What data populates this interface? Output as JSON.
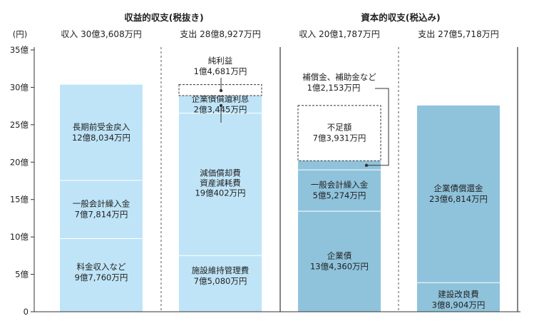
{
  "chart_data": {
    "type": "bar",
    "unit_label": "(円)",
    "ylim": [
      0,
      3500000000
    ],
    "yticks": [
      {
        "value": 0,
        "label": "0"
      },
      {
        "value": 500000000,
        "label": "5億"
      },
      {
        "value": 1000000000,
        "label": "10億"
      },
      {
        "value": 1500000000,
        "label": "15億"
      },
      {
        "value": 2000000000,
        "label": "20億"
      },
      {
        "value": 2500000000,
        "label": "25億"
      },
      {
        "value": 3000000000,
        "label": "30億"
      },
      {
        "value": 3500000000,
        "label": "35億"
      }
    ],
    "groups": [
      {
        "title": "収益的収支(税抜き)"
      },
      {
        "title": "資本的収支(税込み)"
      }
    ],
    "columns": [
      {
        "header": "収入 30億3,608万円",
        "total": 3036080000,
        "segments": [
          {
            "label1": "料金収入など",
            "label2": "9億7,760万円",
            "value": 977600000,
            "color": "#bfe4f7"
          },
          {
            "label1": "一般会計繰入金",
            "label2": "7億7,814万円",
            "value": 778140000,
            "color": "#bfe4f7"
          },
          {
            "label1": "長期前受金戻入",
            "label2": "12億8,034万円",
            "value": 1280340000,
            "color": "#bfe4f7"
          }
        ]
      },
      {
        "header": "支出 28億8,927万円",
        "total": 2889270000,
        "segments": [
          {
            "label1": "施設維持管理費",
            "label2": "7億5,080万円",
            "value": 750800000,
            "color": "#bfe4f7"
          },
          {
            "label1": "減価償却費",
            "label1b": "資産減耗費",
            "label2": "19億402万円",
            "value": 1904020000,
            "color": "#bfe4f7"
          },
          {
            "label1": "企業債償還利息",
            "label2": "2億3,445万円",
            "value": 234450000,
            "color": "#bfe4f7"
          }
        ],
        "dashed_box": {
          "label1": "純利益",
          "label2": "1億4,681万円",
          "value": 146810000
        }
      },
      {
        "header": "収入 20億1,787万円",
        "total": 2017870000,
        "segments": [
          {
            "label1": "企業債",
            "label2": "13億4,360万円",
            "value": 1343600000,
            "color": "#8fc3dc"
          },
          {
            "label1": "一般会計繰入金",
            "label2": "5億5,274万円",
            "value": 552740000,
            "color": "#8fc3dc"
          },
          {
            "label1": "補償金、補助金など",
            "label2": "1億2,153万円",
            "value": 121530000,
            "color": "#8fc3dc"
          }
        ],
        "dashed_box": {
          "label1": "不足額",
          "label2": "7億3,931万円",
          "value": 739310000
        }
      },
      {
        "header": "支出 27億5,718万円",
        "total": 2757180000,
        "segments": [
          {
            "label1": "建設改良費",
            "label2": "3億8,904万円",
            "value": 389040000,
            "color": "#8fc3dc"
          },
          {
            "label1": "企業債償還金",
            "label2": "23億6,814万円",
            "value": 2368140000,
            "color": "#8fc3dc"
          }
        ]
      }
    ]
  }
}
